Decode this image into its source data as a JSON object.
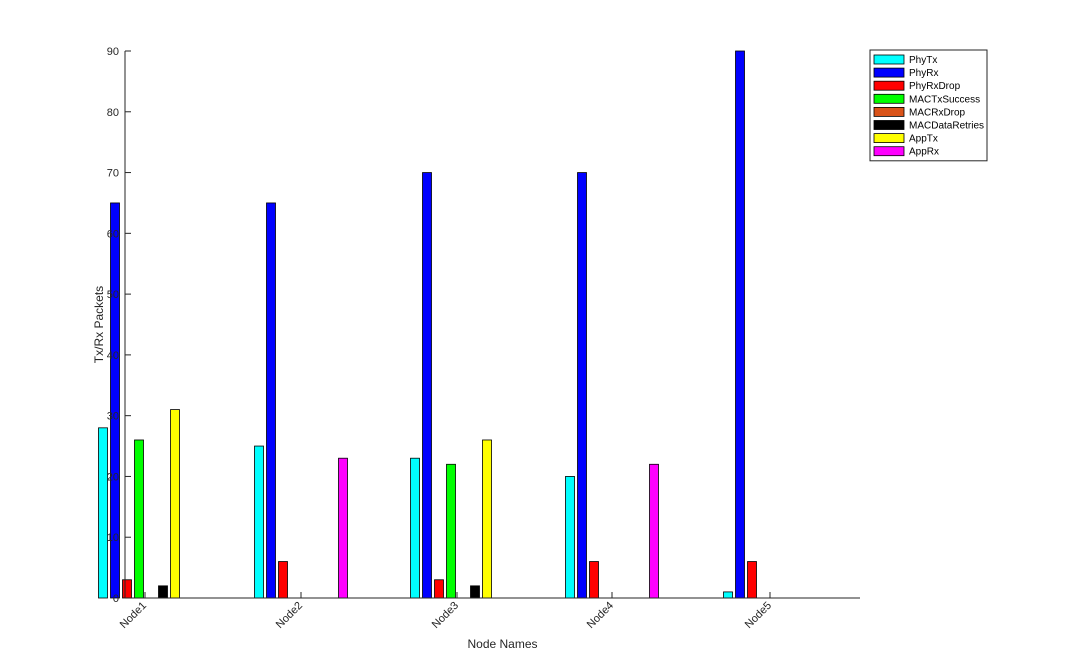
{
  "chart_data": {
    "type": "bar",
    "xlabel": "Node Names",
    "ylabel": "Tx/Rx Packets",
    "ylim": [
      0,
      90
    ],
    "yticks": [
      0,
      10,
      20,
      30,
      40,
      50,
      60,
      70,
      80,
      90
    ],
    "categories": [
      "Node1",
      "Node2",
      "Node3",
      "Node4",
      "Node5"
    ],
    "legend_position": "top-right",
    "series": [
      {
        "name": "PhyTx",
        "color": "#00ffff",
        "values": [
          28,
          25,
          23,
          20,
          1
        ]
      },
      {
        "name": "PhyRx",
        "color": "#0000ff",
        "values": [
          65,
          65,
          70,
          70,
          90
        ]
      },
      {
        "name": "PhyRxDrop",
        "color": "#ff0000",
        "values": [
          3,
          6,
          3,
          6,
          6
        ]
      },
      {
        "name": "MACTxSuccess",
        "color": "#00ff00",
        "values": [
          26,
          0,
          22,
          0,
          0
        ]
      },
      {
        "name": "MACRxDrop",
        "color": "#d95319",
        "values": [
          0,
          0,
          0,
          0,
          0
        ]
      },
      {
        "name": "MACDataRetries",
        "color": "#000000",
        "values": [
          2,
          0,
          2,
          0,
          0
        ]
      },
      {
        "name": "AppTx",
        "color": "#ffff00",
        "values": [
          31,
          0,
          26,
          0,
          0
        ]
      },
      {
        "name": "AppRx",
        "color": "#ff00ff",
        "values": [
          0,
          23,
          0,
          22,
          0
        ]
      }
    ]
  }
}
